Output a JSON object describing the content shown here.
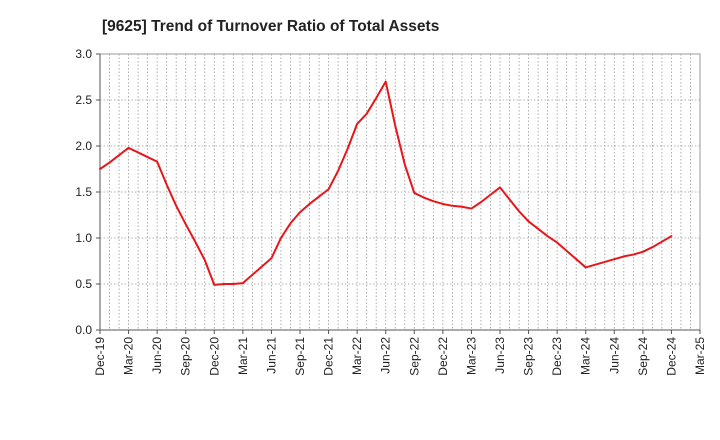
{
  "chart_data": {
    "type": "line",
    "title": "[9625]  Trend of Turnover Ratio of Total Assets",
    "xlabel": "",
    "ylabel": "",
    "ylim": [
      0,
      3.0
    ],
    "yticks": [
      "0.0",
      "0.5",
      "1.0",
      "1.5",
      "2.0",
      "2.5",
      "3.0"
    ],
    "xticks": [
      "Dec-19",
      "Mar-20",
      "Jun-20",
      "Sep-20",
      "Dec-20",
      "Mar-21",
      "Jun-21",
      "Sep-21",
      "Dec-21",
      "Mar-22",
      "Jun-22",
      "Sep-22",
      "Dec-22",
      "Mar-23",
      "Jun-23",
      "Sep-23",
      "Dec-23",
      "Mar-24",
      "Jun-24",
      "Sep-24",
      "Dec-24",
      "Mar-25"
    ],
    "grid": true,
    "legend": "none",
    "series_color": "#e8161b",
    "series": [
      {
        "x": [
          "Dec-19",
          "Jan-20",
          "Feb-20",
          "Mar-20",
          "Apr-20",
          "May-20",
          "Jun-20",
          "Jul-20",
          "Aug-20",
          "Sep-20",
          "Oct-20",
          "Nov-20",
          "Dec-20",
          "Jan-21",
          "Feb-21",
          "Mar-21",
          "Apr-21",
          "May-21",
          "Jun-21",
          "Jul-21",
          "Aug-21",
          "Sep-21",
          "Oct-21",
          "Nov-21",
          "Dec-21",
          "Jan-22",
          "Feb-22",
          "Mar-22",
          "Apr-22",
          "May-22",
          "Jun-22",
          "Jul-22",
          "Aug-22",
          "Sep-22",
          "Oct-22",
          "Nov-22",
          "Dec-22",
          "Jan-23",
          "Feb-23",
          "Mar-23",
          "Apr-23",
          "May-23",
          "Jun-23",
          "Jul-23",
          "Aug-23",
          "Sep-23",
          "Oct-23",
          "Nov-23",
          "Dec-23",
          "Jan-24",
          "Feb-24",
          "Mar-24",
          "Apr-24",
          "May-24",
          "Jun-24",
          "Jul-24",
          "Aug-24",
          "Sep-24",
          "Oct-24",
          "Nov-24",
          "Dec-24"
        ],
        "values": [
          1.75,
          1.82,
          1.9,
          1.98,
          1.93,
          1.88,
          1.83,
          1.58,
          1.35,
          1.15,
          0.96,
          0.76,
          0.49,
          0.5,
          0.5,
          0.51,
          0.6,
          0.69,
          0.78,
          1.0,
          1.16,
          1.28,
          1.37,
          1.45,
          1.53,
          1.73,
          1.97,
          2.24,
          2.35,
          2.52,
          2.7,
          2.22,
          1.8,
          1.49,
          1.44,
          1.4,
          1.37,
          1.35,
          1.34,
          1.32,
          1.39,
          1.47,
          1.55,
          1.42,
          1.29,
          1.18,
          1.1,
          1.02,
          0.95,
          0.86,
          0.77,
          0.68,
          0.71,
          0.74,
          0.77,
          0.8,
          0.82,
          0.85,
          0.9,
          0.96,
          1.02
        ]
      }
    ]
  }
}
